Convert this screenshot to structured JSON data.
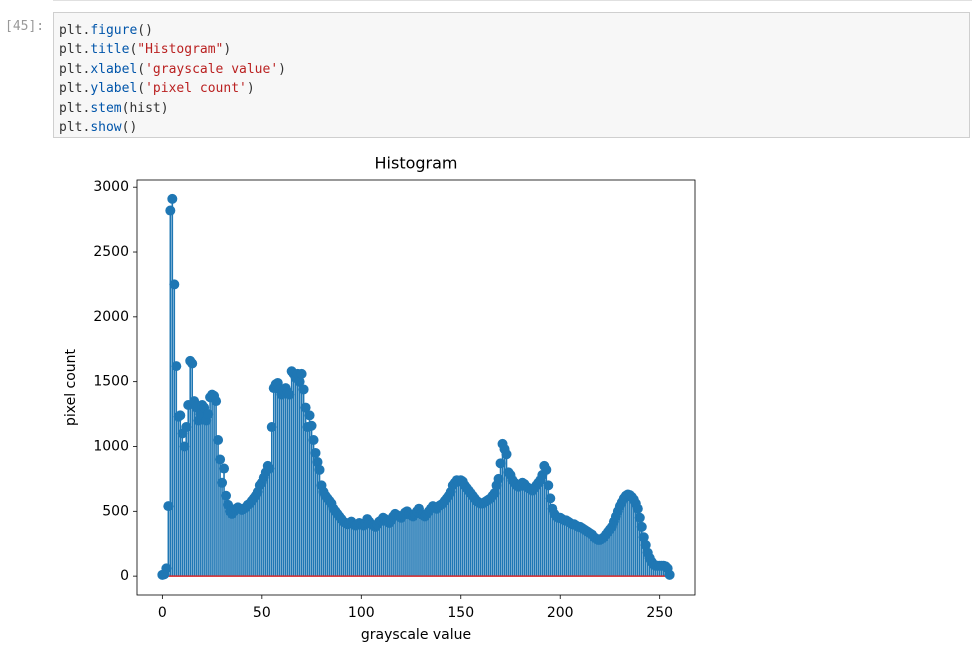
{
  "cell": {
    "prompt": "[45]:",
    "code": [
      "plt.figure()",
      "plt.title(\"Histogram\")",
      "plt.xlabel('grayscale value')",
      "plt.ylabel('pixel count')",
      "plt.stem(hist)",
      "plt.show()"
    ]
  },
  "chart_data": {
    "type": "stem",
    "title": "Histogram",
    "x_label": "grayscale value",
    "y_label": "pixel count",
    "color": "#1f77b4",
    "baseline_color": "#d62728",
    "xlim": [
      -12.75,
      267.75
    ],
    "ylim": [
      -145.5,
      3055.5
    ],
    "xticks": [
      0,
      50,
      100,
      150,
      200,
      250
    ],
    "yticks": [
      0,
      500,
      1000,
      1500,
      2000,
      2500,
      3000
    ],
    "values": [
      10,
      15,
      60,
      540,
      2820,
      2910,
      2250,
      1620,
      1230,
      1240,
      1100,
      1000,
      1150,
      1320,
      1660,
      1640,
      1350,
      1300,
      1200,
      1250,
      1320,
      1300,
      1200,
      1250,
      1380,
      1400,
      1390,
      1350,
      1050,
      900,
      720,
      830,
      620,
      550,
      500,
      480,
      500,
      520,
      530,
      520,
      510,
      520,
      530,
      550,
      560,
      580,
      600,
      620,
      650,
      700,
      720,
      760,
      800,
      850,
      830,
      1150,
      1450,
      1480,
      1490,
      1440,
      1400,
      1430,
      1450,
      1420,
      1400,
      1580,
      1560,
      1530,
      1560,
      1500,
      1560,
      1440,
      1300,
      1150,
      1240,
      1160,
      1050,
      950,
      880,
      820,
      700,
      650,
      620,
      600,
      580,
      560,
      520,
      500,
      480,
      460,
      440,
      420,
      410,
      400,
      410,
      420,
      400,
      390,
      400,
      410,
      400,
      390,
      410,
      440,
      420,
      400,
      390,
      380,
      400,
      420,
      430,
      450,
      440,
      420,
      410,
      430,
      460,
      480,
      470,
      460,
      450,
      470,
      490,
      500,
      480,
      470,
      460,
      480,
      500,
      520,
      480,
      470,
      460,
      480,
      500,
      520,
      540,
      530,
      520,
      540,
      550,
      560,
      580,
      600,
      620,
      650,
      700,
      720,
      740,
      730,
      740,
      730,
      700,
      680,
      660,
      640,
      620,
      600,
      580,
      570,
      560,
      560,
      570,
      580,
      590,
      600,
      620,
      640,
      700,
      750,
      870,
      1020,
      980,
      940,
      800,
      780,
      740,
      720,
      700,
      690,
      700,
      720,
      710,
      690,
      680,
      670,
      660,
      680,
      700,
      720,
      740,
      780,
      850,
      820,
      700,
      600,
      520,
      480,
      460,
      450,
      450,
      440,
      430,
      430,
      420,
      410,
      400,
      400,
      390,
      380,
      380,
      370,
      360,
      350,
      340,
      330,
      320,
      300,
      290,
      280,
      280,
      290,
      300,
      320,
      340,
      360,
      380,
      420,
      460,
      500,
      540,
      570,
      600,
      620,
      630,
      625,
      610,
      590,
      560,
      520,
      450,
      380,
      300,
      240,
      180,
      140,
      110,
      90,
      80,
      80,
      80,
      80,
      80,
      75,
      60,
      10
    ]
  }
}
